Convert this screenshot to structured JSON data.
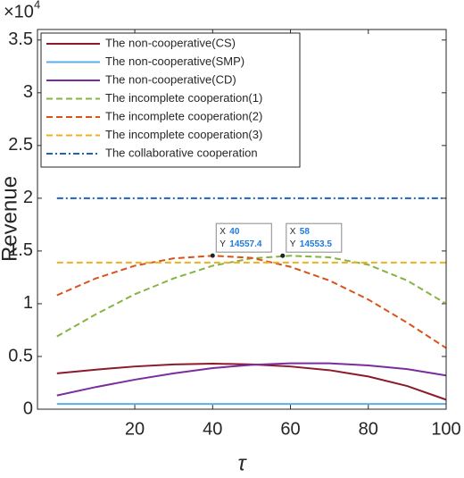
{
  "chart_data": {
    "type": "line",
    "xlabel": "τ",
    "ylabel": "Revenue",
    "y_multiplier": "×10",
    "y_multiplier_exponent": "4",
    "x": [
      0,
      10,
      20,
      30,
      40,
      50,
      60,
      70,
      80,
      90,
      100
    ],
    "xlim": [
      -5,
      100
    ],
    "xticks": [
      20,
      40,
      60,
      80,
      100
    ],
    "ylim": [
      0,
      36000
    ],
    "yticks": [
      {
        "value": 0,
        "label": "0"
      },
      {
        "value": 5000,
        "label": "0.5"
      },
      {
        "value": 10000,
        "label": "1"
      },
      {
        "value": 15000,
        "label": "1.5"
      },
      {
        "value": 20000,
        "label": "2"
      },
      {
        "value": 25000,
        "label": "2.5"
      },
      {
        "value": 30000,
        "label": "3"
      },
      {
        "value": 35000,
        "label": "3.5"
      }
    ],
    "legend": "upper left",
    "series": [
      {
        "name": "The non-cooperative(CS)",
        "color": "#8b1a2b",
        "dash": "solid",
        "values": [
          3400,
          3750,
          4050,
          4250,
          4320,
          4250,
          4050,
          3700,
          3100,
          2200,
          900
        ]
      },
      {
        "name": "The non-cooperative(SMP)",
        "color": "#5aafe8",
        "dash": "solid",
        "values": [
          500,
          500,
          500,
          500,
          500,
          500,
          500,
          500,
          500,
          500,
          500
        ]
      },
      {
        "name": "The non-cooperative(CD)",
        "color": "#7b2d9e",
        "dash": "solid",
        "values": [
          1300,
          2100,
          2800,
          3400,
          3900,
          4200,
          4350,
          4350,
          4150,
          3800,
          3200
        ]
      },
      {
        "name": "The incomplete cooperation(1)",
        "color": "#86b342",
        "dash": "dashed",
        "values": [
          6900,
          9000,
          10900,
          12400,
          13600,
          14300,
          14550,
          14400,
          13700,
          12200,
          10000
        ]
      },
      {
        "name": "The incomplete cooperation(2)",
        "color": "#d95319",
        "dash": "dashed",
        "values": [
          10800,
          12400,
          13600,
          14300,
          14550,
          14350,
          13500,
          12200,
          10400,
          8200,
          5800
        ]
      },
      {
        "name": "The incomplete cooperation(3)",
        "color": "#edb120",
        "dash": "dashed",
        "values": [
          13900,
          13900,
          13900,
          13900,
          13900,
          13900,
          13900,
          13900,
          13900,
          13900,
          13900
        ]
      },
      {
        "name": "The collaborative cooperation",
        "color": "#2060c0",
        "dash": "dashdot",
        "values": [
          20000,
          20000,
          20000,
          20000,
          20000,
          20000,
          20000,
          20000,
          20000,
          20000,
          20000
        ]
      }
    ],
    "datatips": [
      {
        "x_label": "X",
        "x": 40,
        "y_label": "Y",
        "y": 14557.4
      },
      {
        "x_label": "X",
        "x": 58,
        "y_label": "Y",
        "y": 14553.5
      }
    ]
  }
}
